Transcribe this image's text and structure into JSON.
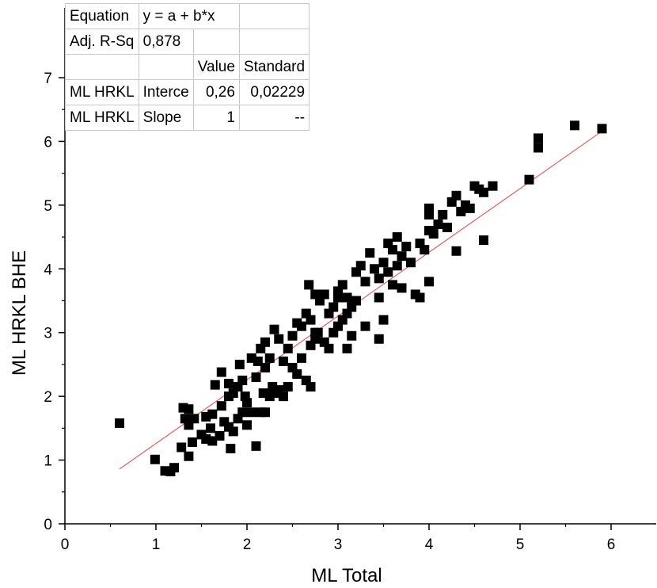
{
  "chart_data": {
    "type": "scatter",
    "title": "",
    "xlabel": "ML Total",
    "ylabel": "ML HRKL BHE",
    "xlim": [
      0,
      7
    ],
    "ylim": [
      0,
      7
    ],
    "xticks": [
      "0",
      "1",
      "2",
      "3",
      "4",
      "5",
      "6"
    ],
    "yticks": [
      "0",
      "1",
      "2",
      "3",
      "4",
      "5",
      "6",
      "7"
    ],
    "grid": false,
    "legend": "none",
    "marker_color": "#000000",
    "fit_line_color": "#e06060",
    "fit_line": {
      "intercept": 0.26,
      "slope": 1,
      "x_range": [
        0.6,
        5.9
      ]
    },
    "points": [
      [
        0.6,
        1.58
      ],
      [
        0.99,
        1.01
      ],
      [
        1.1,
        0.83
      ],
      [
        1.2,
        0.88
      ],
      [
        1.16,
        0.82
      ],
      [
        1.28,
        1.2
      ],
      [
        1.36,
        1.06
      ],
      [
        1.4,
        1.28
      ],
      [
        1.3,
        1.82
      ],
      [
        1.36,
        1.8
      ],
      [
        1.32,
        1.65
      ],
      [
        1.36,
        1.55
      ],
      [
        1.42,
        1.65
      ],
      [
        1.5,
        1.4
      ],
      [
        1.55,
        1.33
      ],
      [
        1.62,
        1.3
      ],
      [
        1.6,
        1.5
      ],
      [
        1.55,
        1.68
      ],
      [
        1.62,
        1.72
      ],
      [
        1.7,
        1.38
      ],
      [
        1.75,
        1.6
      ],
      [
        1.8,
        1.52
      ],
      [
        1.82,
        1.18
      ],
      [
        1.85,
        1.45
      ],
      [
        1.9,
        1.65
      ],
      [
        1.95,
        1.75
      ],
      [
        1.72,
        1.85
      ],
      [
        1.8,
        2.0
      ],
      [
        1.85,
        2.05
      ],
      [
        1.9,
        2.15
      ],
      [
        1.65,
        2.18
      ],
      [
        1.72,
        2.38
      ],
      [
        1.8,
        2.2
      ],
      [
        1.92,
        2.5
      ],
      [
        1.95,
        2.25
      ],
      [
        1.98,
        2.0
      ],
      [
        2.0,
        1.55
      ],
      [
        2.05,
        1.75
      ],
      [
        2.1,
        1.22
      ],
      [
        2.15,
        1.75
      ],
      [
        2.2,
        1.75
      ],
      [
        2.0,
        1.9
      ],
      [
        2.05,
        2.6
      ],
      [
        2.1,
        2.3
      ],
      [
        2.12,
        2.55
      ],
      [
        2.15,
        2.75
      ],
      [
        2.2,
        2.45
      ],
      [
        2.25,
        2.0
      ],
      [
        2.28,
        2.15
      ],
      [
        2.3,
        2.05
      ],
      [
        2.18,
        2.05
      ],
      [
        2.35,
        2.1
      ],
      [
        2.4,
        2.0
      ],
      [
        2.45,
        2.15
      ],
      [
        2.2,
        2.85
      ],
      [
        2.25,
        2.6
      ],
      [
        2.3,
        3.05
      ],
      [
        2.35,
        2.9
      ],
      [
        2.4,
        2.55
      ],
      [
        2.45,
        2.75
      ],
      [
        2.5,
        2.45
      ],
      [
        2.5,
        2.95
      ],
      [
        2.55,
        2.35
      ],
      [
        2.6,
        2.6
      ],
      [
        2.6,
        3.1
      ],
      [
        2.65,
        2.25
      ],
      [
        2.7,
        2.15
      ],
      [
        2.7,
        2.8
      ],
      [
        2.75,
        3.0
      ],
      [
        2.55,
        3.15
      ],
      [
        2.65,
        3.3
      ],
      [
        2.7,
        3.2
      ],
      [
        2.75,
        2.9
      ],
      [
        2.8,
        3.5
      ],
      [
        2.85,
        3.6
      ],
      [
        2.9,
        3.3
      ],
      [
        2.95,
        3.4
      ],
      [
        3.0,
        3.1
      ],
      [
        3.0,
        3.55
      ],
      [
        2.78,
        3.0
      ],
      [
        2.85,
        2.85
      ],
      [
        2.9,
        2.75
      ],
      [
        2.95,
        3.0
      ],
      [
        3.0,
        3.65
      ],
      [
        3.05,
        3.75
      ],
      [
        3.1,
        3.55
      ],
      [
        3.15,
        3.4
      ],
      [
        3.2,
        3.5
      ],
      [
        3.1,
        3.3
      ],
      [
        3.05,
        3.2
      ],
      [
        2.68,
        3.75
      ],
      [
        2.75,
        3.6
      ],
      [
        3.2,
        3.95
      ],
      [
        3.25,
        4.05
      ],
      [
        3.3,
        3.8
      ],
      [
        3.35,
        4.25
      ],
      [
        3.4,
        4.0
      ],
      [
        3.45,
        3.85
      ],
      [
        3.5,
        4.1
      ],
      [
        3.55,
        3.95
      ],
      [
        3.6,
        3.75
      ],
      [
        3.55,
        4.4
      ],
      [
        3.6,
        4.3
      ],
      [
        3.65,
        4.05
      ],
      [
        3.7,
        4.2
      ],
      [
        3.75,
        4.35
      ],
      [
        3.7,
        3.7
      ],
      [
        3.8,
        4.1
      ],
      [
        3.85,
        3.6
      ],
      [
        3.9,
        3.55
      ],
      [
        3.9,
        4.4
      ],
      [
        3.95,
        4.3
      ],
      [
        4.0,
        4.6
      ],
      [
        4.0,
        4.85
      ],
      [
        4.05,
        4.55
      ],
      [
        4.1,
        4.7
      ],
      [
        4.15,
        4.85
      ],
      [
        4.2,
        4.65
      ],
      [
        4.0,
        4.95
      ],
      [
        3.65,
        4.5
      ],
      [
        4.25,
        5.05
      ],
      [
        4.3,
        5.15
      ],
      [
        4.35,
        4.9
      ],
      [
        4.4,
        5.0
      ],
      [
        4.45,
        4.95
      ],
      [
        4.5,
        5.3
      ],
      [
        4.55,
        5.25
      ],
      [
        4.6,
        5.2
      ],
      [
        4.7,
        5.3
      ],
      [
        4.6,
        4.45
      ],
      [
        4.3,
        4.28
      ],
      [
        4.0,
        3.8
      ],
      [
        3.5,
        3.2
      ],
      [
        3.3,
        3.1
      ],
      [
        3.45,
        3.55
      ],
      [
        3.15,
        2.95
      ],
      [
        3.1,
        2.75
      ],
      [
        3.45,
        2.9
      ],
      [
        5.1,
        5.4
      ],
      [
        5.2,
        5.9
      ],
      [
        5.2,
        6.05
      ],
      [
        5.6,
        6.25
      ],
      [
        5.9,
        6.2
      ]
    ]
  },
  "fit_table": {
    "rows": [
      [
        "Equation",
        "y = a + b*x",
        ""
      ],
      [
        "Adj. R-Sq",
        "0,878",
        ""
      ],
      [
        "",
        "Value",
        "Standard"
      ],
      [
        "ML HRKL",
        "Interce",
        "0,26",
        "0,02229"
      ],
      [
        "ML HRKL",
        "Slope",
        "1",
        "--"
      ]
    ]
  }
}
